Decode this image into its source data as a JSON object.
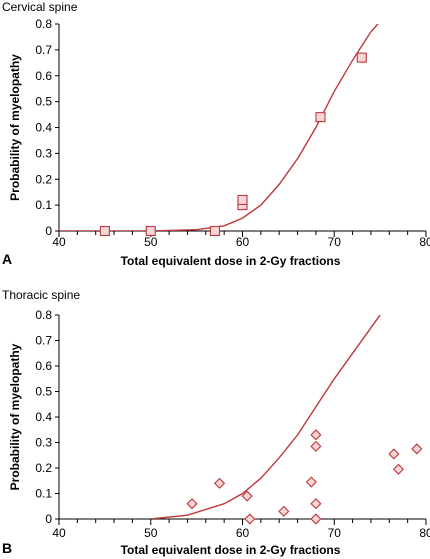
{
  "chart_data": [
    {
      "panel_letter": "A",
      "title": "Cervical spine",
      "type": "scatter",
      "xlabel": "Total equivalent dose in 2-Gy fractions",
      "ylabel": "Probability of myelopathy",
      "xlim": [
        40,
        80
      ],
      "ylim": [
        0,
        0.8
      ],
      "xticks": [
        "40",
        "50",
        "60",
        "70",
        "80"
      ],
      "yticks": [
        "0",
        "0.1",
        "0.2",
        "0.3",
        "0.4",
        "0.5",
        "0.6",
        "0.7",
        "0.8"
      ],
      "marker": "square",
      "color": "#c0363c",
      "curve": {
        "x": [
          40,
          50,
          55,
          58,
          60,
          62,
          64,
          66,
          68,
          70,
          72,
          74,
          76
        ],
        "y": [
          0,
          0,
          0.005,
          0.02,
          0.05,
          0.1,
          0.18,
          0.28,
          0.4,
          0.54,
          0.66,
          0.77,
          0.85
        ]
      },
      "points": {
        "x": [
          45,
          50,
          57,
          60,
          60,
          68.5,
          73
        ],
        "y": [
          0,
          0,
          0,
          0.1,
          0.12,
          0.44,
          0.67
        ]
      }
    },
    {
      "panel_letter": "B",
      "title": "Thoracic spine",
      "type": "scatter",
      "xlabel": "Total equivalent dose in 2-Gy fractions",
      "ylabel": "Probability of myelopathy",
      "xlim": [
        40,
        80
      ],
      "ylim": [
        0,
        0.8
      ],
      "xticks": [
        "40",
        "50",
        "60",
        "70",
        "80"
      ],
      "yticks": [
        "0",
        "0.1",
        "0.2",
        "0.3",
        "0.4",
        "0.5",
        "0.6",
        "0.7",
        "0.8"
      ],
      "marker": "diamond",
      "color": "#c0363c",
      "curve": {
        "x": [
          50,
          54,
          58,
          60,
          62,
          64,
          66,
          68,
          70,
          72,
          74,
          75
        ],
        "y": [
          0,
          0.015,
          0.06,
          0.1,
          0.16,
          0.24,
          0.33,
          0.44,
          0.55,
          0.65,
          0.75,
          0.8
        ]
      },
      "points": {
        "x": [
          54.5,
          57.5,
          60.5,
          60.8,
          64.5,
          67.5,
          68,
          68,
          68,
          68,
          76.5,
          77,
          79
        ],
        "y": [
          0.06,
          0.14,
          0.09,
          0.0,
          0.03,
          0.145,
          0.33,
          0.285,
          0.06,
          0.0,
          0.255,
          0.195,
          0.275
        ]
      }
    }
  ]
}
